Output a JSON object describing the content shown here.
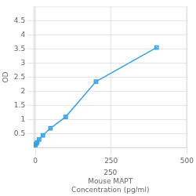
{
  "chart_data": {
    "type": "line",
    "x": [
      0,
      3.13,
      6.25,
      12.5,
      25,
      50,
      100,
      200,
      400
    ],
    "values": [
      0.1,
      0.15,
      0.2,
      0.3,
      0.45,
      0.7,
      1.1,
      2.35,
      3.55
    ],
    "xlabel": "250\nMouse MAPT\nConcentration (pg/ml)",
    "ylabel": "OD",
    "xlim": [
      -5,
      500
    ],
    "ylim": [
      0,
      5
    ],
    "xticks": [
      0,
      250,
      500
    ],
    "yticks": [
      0.5,
      1,
      1.5,
      2,
      2.5,
      3,
      3.5,
      4,
      4.5
    ],
    "marker": "square",
    "grid": true
  }
}
